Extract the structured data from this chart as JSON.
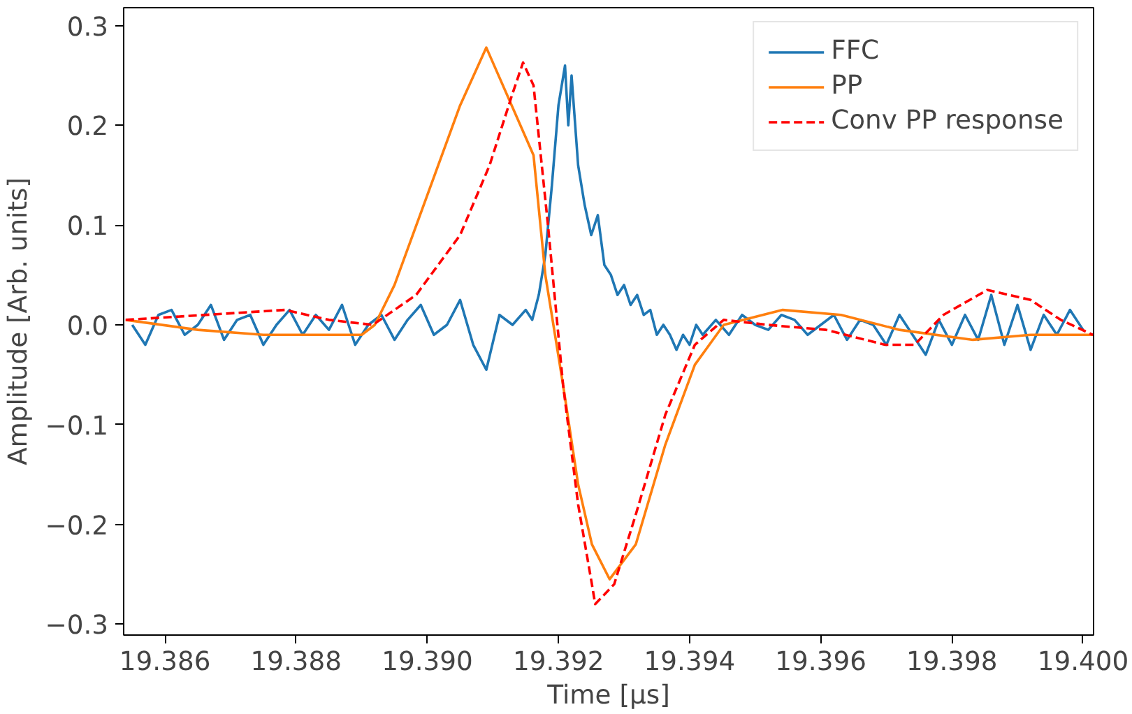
{
  "chart_data": {
    "type": "line",
    "xlabel": "Time [μs]",
    "ylabel": "Amplitude [Arb. units]",
    "xlim": [
      19.38537,
      19.40016
    ],
    "ylim": [
      -0.311,
      0.318
    ],
    "xticks": [
      {
        "value": 19.386,
        "label": "19.386"
      },
      {
        "value": 19.388,
        "label": "19.388"
      },
      {
        "value": 19.39,
        "label": "19.390"
      },
      {
        "value": 19.392,
        "label": "19.392"
      },
      {
        "value": 19.394,
        "label": "19.394"
      },
      {
        "value": 19.396,
        "label": "19.396"
      },
      {
        "value": 19.398,
        "label": "19.398"
      },
      {
        "value": 19.4,
        "label": "19.400"
      }
    ],
    "yticks": [
      {
        "value": -0.3,
        "label": "−0.3"
      },
      {
        "value": -0.2,
        "label": "−0.2"
      },
      {
        "value": -0.1,
        "label": "−0.1"
      },
      {
        "value": 0.0,
        "label": "0.0"
      },
      {
        "value": 0.1,
        "label": "0.1"
      },
      {
        "value": 0.2,
        "label": "0.2"
      },
      {
        "value": 0.3,
        "label": "0.3"
      }
    ],
    "grid": false,
    "legend": "top right",
    "series": [
      {
        "name": "FFC",
        "color": "#1f77b4",
        "line_style": "solid",
        "x": [
          19.3855,
          19.3857,
          19.3859,
          19.3861,
          19.3863,
          19.3865,
          19.3867,
          19.3869,
          19.3871,
          19.3873,
          19.3875,
          19.3877,
          19.3879,
          19.3881,
          19.3883,
          19.3885,
          19.3887,
          19.3889,
          19.3891,
          19.3893,
          19.3895,
          19.3897,
          19.3899,
          19.3901,
          19.3903,
          19.3905,
          19.3907,
          19.3909,
          19.3911,
          19.3913,
          19.3915,
          19.3916,
          19.3917,
          19.3918,
          19.3919,
          19.392,
          19.3921,
          19.39215,
          19.3922,
          19.3923,
          19.3924,
          19.3925,
          19.3926,
          19.3927,
          19.3928,
          19.3929,
          19.393,
          19.3931,
          19.3932,
          19.3933,
          19.3934,
          19.3935,
          19.3936,
          19.3937,
          19.3938,
          19.3939,
          19.394,
          19.3941,
          19.3942,
          19.3944,
          19.3946,
          19.3948,
          19.395,
          19.3952,
          19.3954,
          19.3956,
          19.3958,
          19.396,
          19.3962,
          19.3964,
          19.3966,
          19.3968,
          19.397,
          19.3972,
          19.3974,
          19.3976,
          19.3978,
          19.398,
          19.3982,
          19.3984,
          19.3986,
          19.3988,
          19.399,
          19.3992,
          19.3994,
          19.3996,
          19.3998,
          19.4
        ],
        "values": [
          0.0,
          -0.02,
          0.01,
          0.015,
          -0.01,
          0.0,
          0.02,
          -0.015,
          0.005,
          0.01,
          -0.02,
          0.0,
          0.015,
          -0.01,
          0.01,
          -0.005,
          0.02,
          -0.02,
          0.0,
          0.01,
          -0.015,
          0.005,
          0.02,
          -0.01,
          0.0,
          0.025,
          -0.02,
          -0.045,
          0.01,
          0.0,
          0.015,
          0.005,
          0.03,
          0.07,
          0.14,
          0.22,
          0.26,
          0.2,
          0.25,
          0.16,
          0.12,
          0.09,
          0.11,
          0.06,
          0.05,
          0.03,
          0.04,
          0.02,
          0.03,
          0.01,
          0.015,
          -0.01,
          0.0,
          -0.01,
          -0.025,
          -0.01,
          -0.02,
          0.0,
          -0.01,
          0.005,
          -0.01,
          0.01,
          0.0,
          -0.005,
          0.01,
          0.005,
          -0.01,
          0.0,
          0.01,
          -0.015,
          0.005,
          0.0,
          -0.02,
          0.01,
          -0.01,
          -0.03,
          0.005,
          -0.02,
          0.01,
          -0.015,
          0.03,
          -0.02,
          0.02,
          -0.025,
          0.01,
          -0.01,
          0.015,
          -0.005
        ]
      },
      {
        "name": "PP",
        "color": "#ff7f0e",
        "line_style": "solid",
        "x": [
          19.3854,
          19.3865,
          19.3875,
          19.389,
          19.3892,
          19.3895,
          19.39,
          19.3905,
          19.3909,
          19.39162,
          19.3918,
          19.39207,
          19.3923,
          19.39251,
          19.39278,
          19.39318,
          19.39363,
          19.39408,
          19.39452,
          19.39542,
          19.39631,
          19.3972,
          19.39832,
          19.3992,
          19.40015
        ],
        "values": [
          0.005,
          -0.005,
          -0.01,
          -0.01,
          0.0,
          0.04,
          0.13,
          0.22,
          0.278,
          0.17,
          0.05,
          -0.06,
          -0.16,
          -0.22,
          -0.255,
          -0.22,
          -0.12,
          -0.04,
          0.0,
          0.015,
          0.01,
          -0.005,
          -0.015,
          -0.01,
          -0.01
        ]
      },
      {
        "name": "Conv PP response",
        "color": "#ff0000",
        "line_style": "dashed",
        "x": [
          19.3854,
          19.38783,
          19.3885,
          19.38917,
          19.38983,
          19.3905,
          19.39095,
          19.39129,
          19.39146,
          19.39162,
          19.39184,
          19.39207,
          19.3923,
          19.39251,
          19.39256,
          19.39285,
          19.39318,
          19.39363,
          19.39408,
          19.39452,
          19.39519,
          19.39608,
          19.39698,
          19.39743,
          19.39787,
          19.39854,
          19.3992,
          19.39966,
          19.40015
        ],
        "values": [
          0.005,
          0.015,
          0.005,
          0.0,
          0.03,
          0.09,
          0.16,
          0.23,
          0.263,
          0.24,
          0.1,
          -0.06,
          -0.18,
          -0.26,
          -0.28,
          -0.26,
          -0.19,
          -0.09,
          -0.02,
          0.005,
          0.0,
          -0.005,
          -0.02,
          -0.02,
          0.01,
          0.035,
          0.025,
          0.005,
          -0.01
        ]
      }
    ]
  }
}
